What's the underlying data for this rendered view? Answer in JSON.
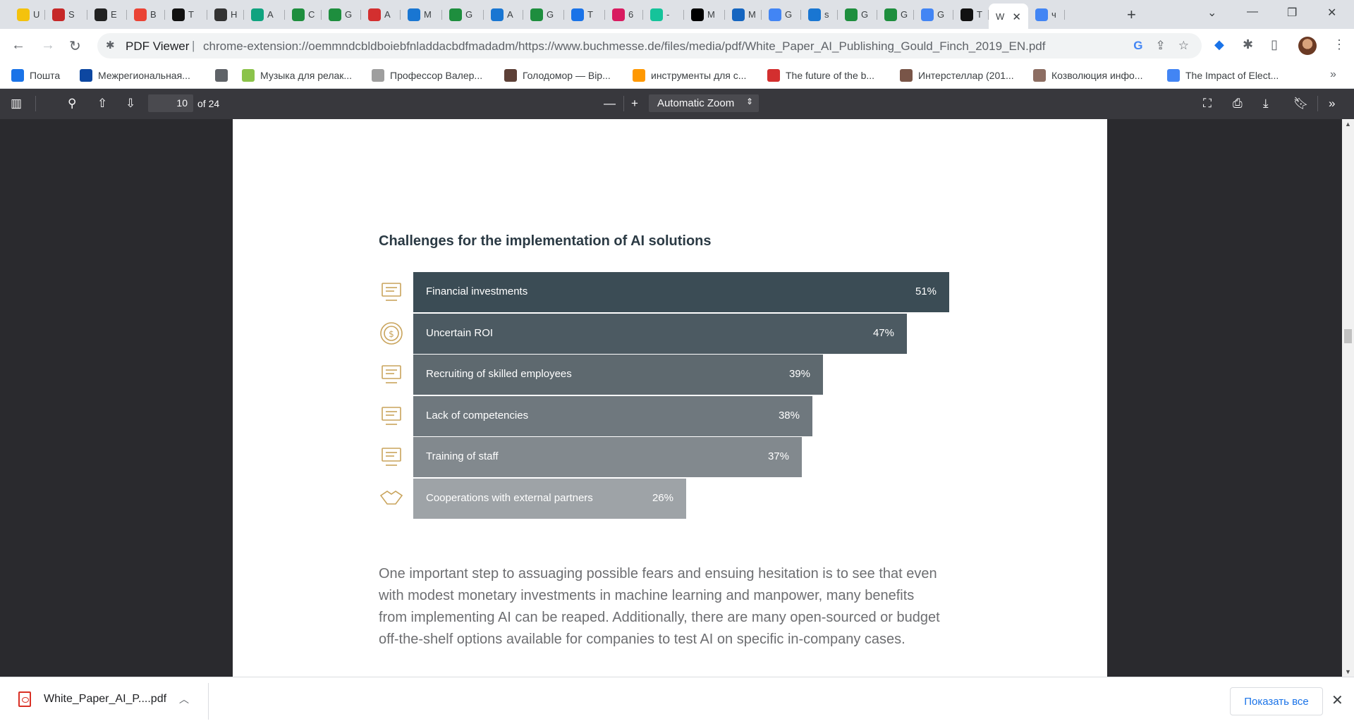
{
  "tabs": [
    {
      "title": "U",
      "icon": "yellow-circle-icon",
      "color": "#f4c20d"
    },
    {
      "title": "S",
      "icon": "thermometer-icon",
      "color": "#c62828"
    },
    {
      "title": "E",
      "icon": "spider-icon",
      "color": "#222222"
    },
    {
      "title": "B",
      "icon": "gmail-icon",
      "color": "#ea4335"
    },
    {
      "title": "T",
      "icon": "tool-icon",
      "color": "#111111"
    },
    {
      "title": "Н",
      "icon": "trident-icon",
      "color": "#333333"
    },
    {
      "title": "A",
      "icon": "openai-icon",
      "color": "#10a37f"
    },
    {
      "title": "C",
      "icon": "gf-icon",
      "color": "#1e8e3e"
    },
    {
      "title": "G",
      "icon": "gf-icon",
      "color": "#1e8e3e"
    },
    {
      "title": "A",
      "icon": "red-bars-icon",
      "color": "#d32f2f"
    },
    {
      "title": "M",
      "icon": "grid-icon",
      "color": "#1976d2"
    },
    {
      "title": "G",
      "icon": "gf-icon",
      "color": "#1e8e3e"
    },
    {
      "title": "A",
      "icon": "grid-icon",
      "color": "#1976d2"
    },
    {
      "title": "G",
      "icon": "gf-icon",
      "color": "#1e8e3e"
    },
    {
      "title": "T",
      "icon": "c-circle-icon",
      "color": "#1a73e8"
    },
    {
      "title": "6",
      "icon": "dots-icon",
      "color": "#d81b60"
    },
    {
      "title": "-",
      "icon": "grammarly-icon",
      "color": "#15c39a"
    },
    {
      "title": "M",
      "icon": "ain-icon",
      "color": "#000000"
    },
    {
      "title": "M",
      "icon": "mountain-icon",
      "color": "#1565c0"
    },
    {
      "title": "G",
      "icon": "translate-icon",
      "color": "#4285f4"
    },
    {
      "title": "s",
      "icon": "grid-icon",
      "color": "#1976d2"
    },
    {
      "title": "G",
      "icon": "gf-icon",
      "color": "#1e8e3e"
    },
    {
      "title": "G",
      "icon": "gf-icon",
      "color": "#1e8e3e"
    },
    {
      "title": "G",
      "icon": "translate-icon",
      "color": "#4285f4"
    },
    {
      "title": "T",
      "icon": "tool-icon",
      "color": "#111111"
    },
    {
      "title": "W",
      "icon": "none",
      "color": "#ffffff",
      "active": true
    },
    {
      "title": "ч",
      "icon": "google-icon",
      "color": "#4285f4"
    }
  ],
  "toolbar": {
    "site_label": "PDF Viewer",
    "url": "chrome-extension://oemmndcbldboiebfnladdacbdfmadadm/https://www.buchmesse.de/files/media/pdf/White_Paper_AI_Publishing_Gould_Finch_2019_EN.pdf"
  },
  "bookmarks": [
    {
      "label": "Пошта",
      "icon": "mail-icon",
      "color": "#1a73e8"
    },
    {
      "label": "Межрегиональная...",
      "icon": "chart-icon",
      "color": "#0d47a1"
    },
    {
      "label": "",
      "icon": "globe-icon",
      "color": "#5f6368"
    },
    {
      "label": "Музыка для релак...",
      "icon": "music-icon",
      "color": "#8bc34a"
    },
    {
      "label": "Профессор Валер...",
      "icon": "page-icon",
      "color": "#9e9e9e"
    },
    {
      "label": "Голодомор — Вір...",
      "icon": "wheat-icon",
      "color": "#5d4037"
    },
    {
      "label": "инструменты для с...",
      "icon": "tools-icon",
      "color": "#ff9800"
    },
    {
      "label": "The future of the b...",
      "icon": "e-icon",
      "color": "#d32f2f"
    },
    {
      "label": "Интерстеллар (201...",
      "icon": "film-icon",
      "color": "#795548"
    },
    {
      "label": "Козволюция инфо...",
      "icon": "book-icon",
      "color": "#8d6e63"
    },
    {
      "label": "The Impact of Elect...",
      "icon": "google-icon",
      "color": "#4285f4"
    }
  ],
  "pdf_toolbar": {
    "page_number": "10",
    "page_of": "of 24",
    "zoom": "Automatic Zoom"
  },
  "document": {
    "chart_title": "Challenges for the implementation of AI solutions",
    "body": "One important step to assuaging possible fears and ensuing hesitation is to see that even with modest monetary investments in machine learning and manpower, many benefits from implementing AI can be reaped. Additionally, there are many open-sourced or budget off-the-shelf options available for companies to test AI on specific in-company cases."
  },
  "chart_data": {
    "type": "bar",
    "orientation": "horizontal",
    "title": "Challenges for the implementation of AI solutions",
    "categories": [
      "Financial investments",
      "Uncertain ROI",
      "Recruiting of skilled employees",
      "Lack of competencies",
      "Training of staff",
      "Cooperations with external partners"
    ],
    "values": [
      51,
      47,
      39,
      38,
      37,
      26
    ],
    "value_labels": [
      "51%",
      "47%",
      "39%",
      "38%",
      "37%",
      "26%"
    ],
    "icons": [
      "computer-money-icon",
      "coin-icon",
      "team-icon",
      "people-question-icon",
      "presentation-icon",
      "handshake-icon"
    ],
    "colors": [
      "#3b4c55",
      "#4c5a62",
      "#5e696f",
      "#6f787e",
      "#82898e",
      "#9ea3a7"
    ],
    "unit": "%"
  },
  "download_bar": {
    "filename": "White_Paper_AI_P....pdf",
    "show_all": "Показать все"
  }
}
